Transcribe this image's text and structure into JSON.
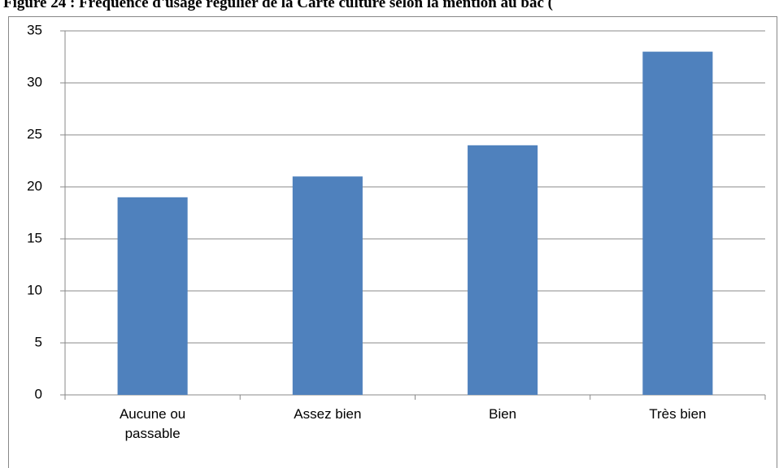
{
  "chart_data": {
    "type": "bar",
    "title": "Figure 24 : Fréquence d'usage régulier de la Carte culture selon la mention au bac (",
    "categories": [
      "Aucune ou passable",
      "Assez bien",
      "Bien",
      "Très bien"
    ],
    "values": [
      19,
      21,
      24,
      33
    ],
    "color": "#4f81bd",
    "ylim": [
      0,
      35
    ],
    "yticks": [
      0,
      5,
      10,
      15,
      20,
      25,
      30,
      35
    ],
    "grid": true
  }
}
